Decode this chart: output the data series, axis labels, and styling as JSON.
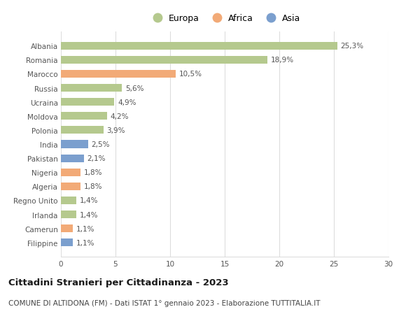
{
  "categories": [
    "Albania",
    "Romania",
    "Marocco",
    "Russia",
    "Ucraina",
    "Moldova",
    "Polonia",
    "India",
    "Pakistan",
    "Nigeria",
    "Algeria",
    "Regno Unito",
    "Irlanda",
    "Camerun",
    "Filippine"
  ],
  "values": [
    25.3,
    18.9,
    10.5,
    5.6,
    4.9,
    4.2,
    3.9,
    2.5,
    2.1,
    1.8,
    1.8,
    1.4,
    1.4,
    1.1,
    1.1
  ],
  "labels": [
    "25,3%",
    "18,9%",
    "10,5%",
    "5,6%",
    "4,9%",
    "4,2%",
    "3,9%",
    "2,5%",
    "2,1%",
    "1,8%",
    "1,8%",
    "1,4%",
    "1,4%",
    "1,1%",
    "1,1%"
  ],
  "continents": [
    "Europa",
    "Europa",
    "Africa",
    "Europa",
    "Europa",
    "Europa",
    "Europa",
    "Asia",
    "Asia",
    "Africa",
    "Africa",
    "Europa",
    "Europa",
    "Africa",
    "Asia"
  ],
  "colors": {
    "Europa": "#b5c98e",
    "Africa": "#f2aa77",
    "Asia": "#7b9fce"
  },
  "legend_order": [
    "Europa",
    "Africa",
    "Asia"
  ],
  "xlim": [
    0,
    30
  ],
  "xticks": [
    0,
    5,
    10,
    15,
    20,
    25,
    30
  ],
  "title": "Cittadini Stranieri per Cittadinanza - 2023",
  "subtitle": "COMUNE DI ALTIDONA (FM) - Dati ISTAT 1° gennaio 2023 - Elaborazione TUTTITALIA.IT",
  "background_color": "#ffffff",
  "grid_color": "#dddddd",
  "bar_height": 0.55,
  "label_fontsize": 7.5,
  "tick_fontsize": 7.5,
  "title_fontsize": 9.5,
  "subtitle_fontsize": 7.5
}
